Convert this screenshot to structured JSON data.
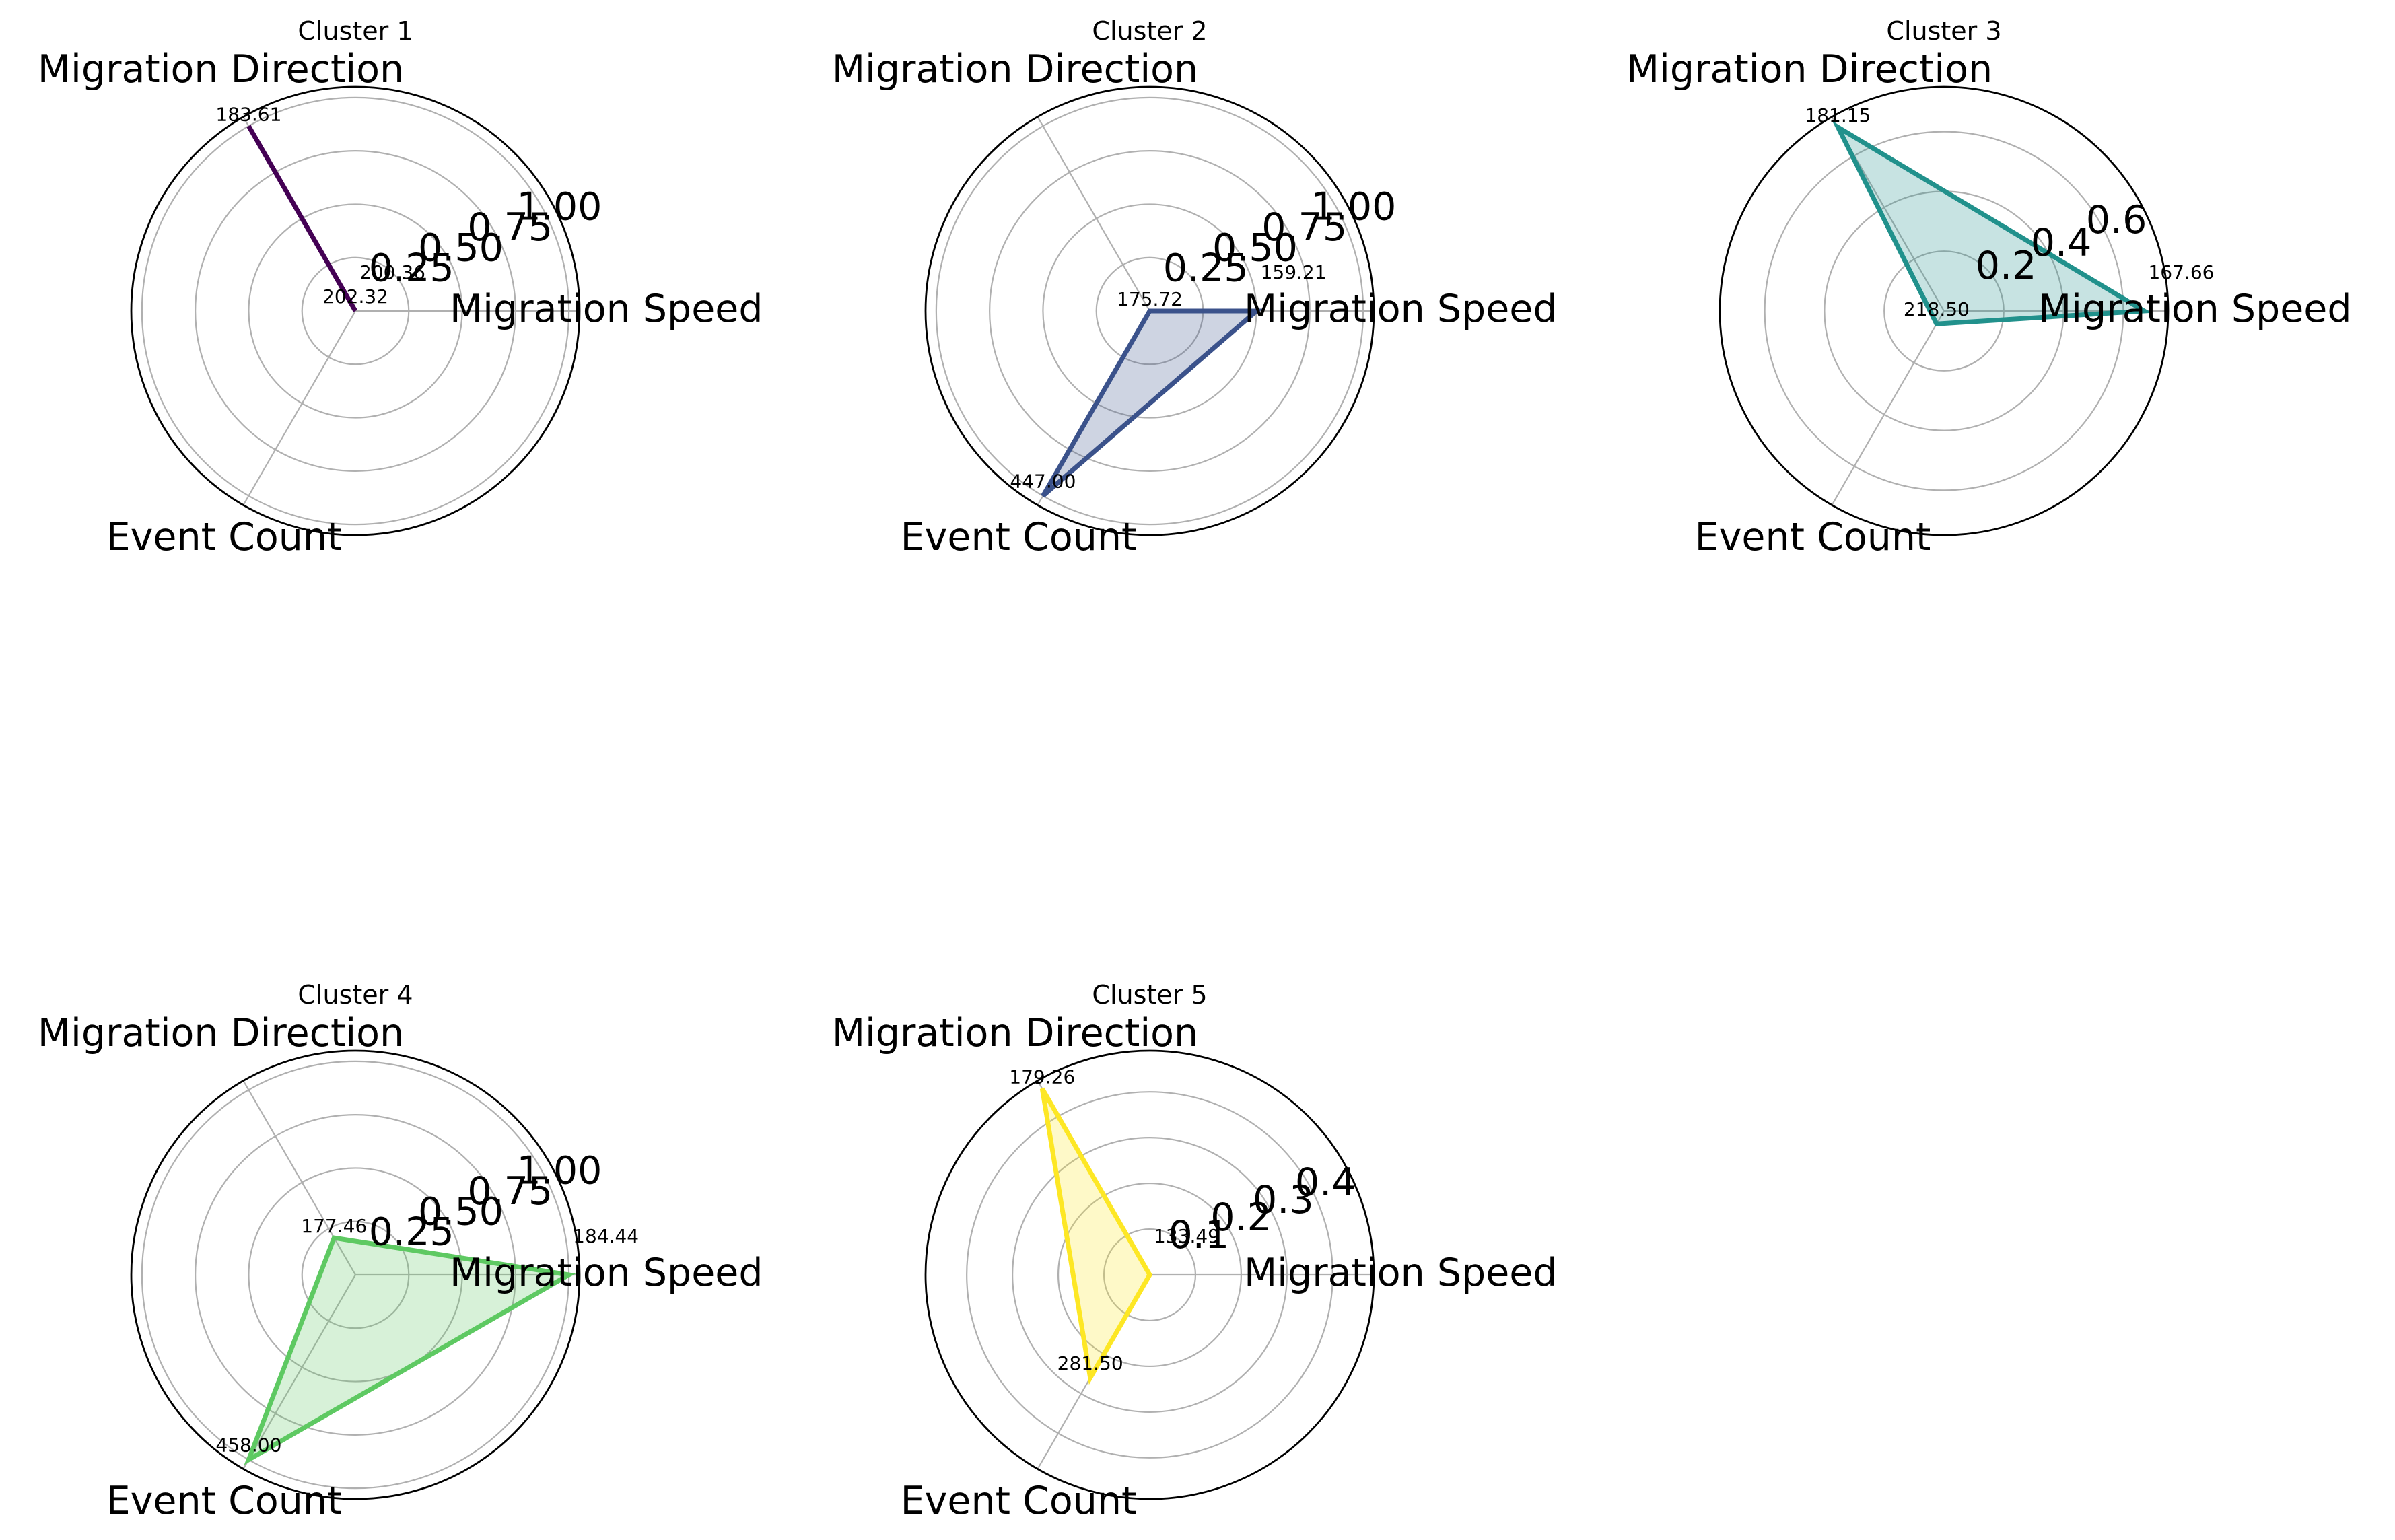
{
  "chart_data": [
    {
      "type": "radar",
      "title": "Cluster 1",
      "axes": [
        "Migration Speed",
        "Migration Direction",
        "Event Count"
      ],
      "values": [
        0.0,
        1.0,
        0.0
      ],
      "labels": [
        "200.36",
        "183.61",
        "202.32"
      ],
      "rlim": [
        0,
        1.05
      ],
      "rticks": [
        "0.25",
        "0.50",
        "0.75",
        "1.00"
      ],
      "rtick_values": [
        0.25,
        0.5,
        0.75,
        1.0
      ],
      "color": "#440154",
      "grid": true
    },
    {
      "type": "radar",
      "title": "Cluster 2",
      "axes": [
        "Migration Speed",
        "Migration Direction",
        "Event Count"
      ],
      "values": [
        0.5,
        0.0,
        1.0
      ],
      "labels": [
        "159.21",
        "175.72",
        "447.00"
      ],
      "rlim": [
        0,
        1.05
      ],
      "rticks": [
        "0.25",
        "0.50",
        "0.75",
        "1.00"
      ],
      "rtick_values": [
        0.25,
        0.5,
        0.75,
        1.0
      ],
      "color": "#3b528b",
      "grid": true
    },
    {
      "type": "radar",
      "title": "Cluster 3",
      "axes": [
        "Migration Speed",
        "Migration Direction",
        "Event Count"
      ],
      "values": [
        0.67,
        0.71,
        0.05
      ],
      "labels": [
        "167.66",
        "181.15",
        "218.50"
      ],
      "rlim": [
        0,
        0.75
      ],
      "rticks": [
        "0.2",
        "0.4",
        "0.6"
      ],
      "rtick_values": [
        0.2,
        0.4,
        0.6
      ],
      "color": "#21918c",
      "grid": true
    },
    {
      "type": "radar",
      "title": "Cluster 4",
      "axes": [
        "Migration Speed",
        "Migration Direction",
        "Event Count"
      ],
      "values": [
        1.0,
        0.2,
        1.0
      ],
      "labels": [
        "184.44",
        "177.46",
        "458.00"
      ],
      "rlim": [
        0,
        1.05
      ],
      "rticks": [
        "0.25",
        "0.50",
        "0.75",
        "1.00"
      ],
      "rtick_values": [
        0.25,
        0.5,
        0.75,
        1.0
      ],
      "color": "#5ec962",
      "grid": true
    },
    {
      "type": "radar",
      "title": "Cluster 5",
      "axes": [
        "Migration Speed",
        "Migration Direction",
        "Event Count"
      ],
      "values": [
        0.0,
        0.47,
        0.26
      ],
      "labels": [
        "133.49",
        "179.26",
        "281.50"
      ],
      "rlim": [
        0,
        0.49
      ],
      "rticks": [
        "0.1",
        "0.2",
        "0.3",
        "0.4"
      ],
      "rtick_values": [
        0.1,
        0.2,
        0.3,
        0.4
      ],
      "color": "#fde725",
      "grid": true
    }
  ]
}
